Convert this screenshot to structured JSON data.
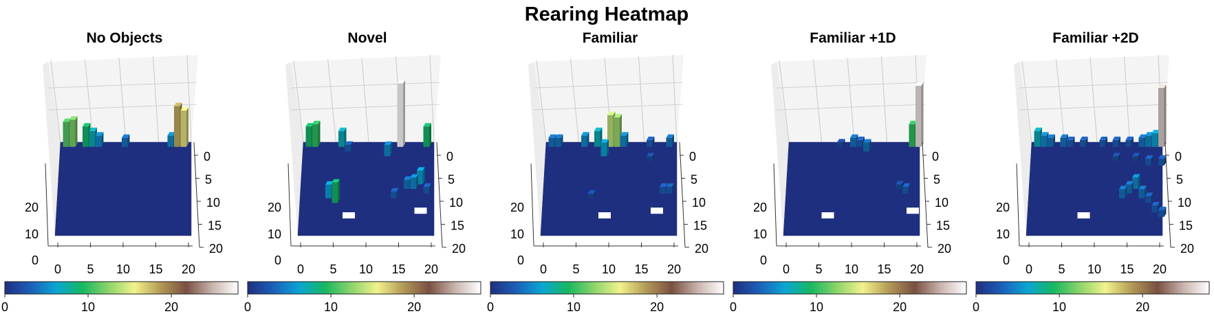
{
  "chart_data": {
    "type": "bar3d",
    "title": "Rearing Heatmap",
    "colormap": {
      "name": "gist_earth-like",
      "range": [
        0,
        28
      ],
      "ticks": [
        "0",
        "10",
        "20"
      ],
      "stops": [
        "#1f2f80",
        "#1c5fb8",
        "#0aa6d4",
        "#17b860",
        "#8bd46a",
        "#f2f28c",
        "#b39a56",
        "#7a4f42",
        "#c9b3ad",
        "#ffffff"
      ]
    },
    "axes": {
      "x_ticks": [
        "0",
        "5",
        "10",
        "15",
        "20"
      ],
      "y_ticks": [
        "0",
        "5",
        "10",
        "15",
        "20"
      ],
      "z_ticks": [
        "0",
        "10",
        "20"
      ],
      "grid": true
    },
    "empty_cell_color": "#ffffff",
    "panels": [
      {
        "name": "No Objects",
        "bars": [
          {
            "x": 1,
            "y": 1,
            "z": 11
          },
          {
            "x": 2,
            "y": 1,
            "z": 12
          },
          {
            "x": 4,
            "y": 1,
            "z": 9
          },
          {
            "x": 5,
            "y": 1,
            "z": 7
          },
          {
            "x": 6,
            "y": 1,
            "z": 5
          },
          {
            "x": 10,
            "y": 1,
            "z": 4
          },
          {
            "x": 17,
            "y": 1,
            "z": 5
          },
          {
            "x": 18,
            "y": 1,
            "z": 18
          },
          {
            "x": 19,
            "y": 1,
            "z": 16
          }
        ],
        "empty": []
      },
      {
        "name": "Novel",
        "bars": [
          {
            "x": 1,
            "y": 1,
            "z": 9
          },
          {
            "x": 2,
            "y": 1,
            "z": 10
          },
          {
            "x": 6,
            "y": 1,
            "z": 7
          },
          {
            "x": 15,
            "y": 1,
            "z": 28
          },
          {
            "x": 19,
            "y": 1,
            "z": 9
          },
          {
            "x": 7,
            "y": 2,
            "z": 3
          },
          {
            "x": 13,
            "y": 3,
            "z": 5
          },
          {
            "x": 4,
            "y": 12,
            "z": 6
          },
          {
            "x": 5,
            "y": 13,
            "z": 9
          },
          {
            "x": 16,
            "y": 10,
            "z": 4
          },
          {
            "x": 17,
            "y": 10,
            "z": 5
          },
          {
            "x": 18,
            "y": 9,
            "z": 6
          },
          {
            "x": 14,
            "y": 12,
            "z": 3
          },
          {
            "x": 19,
            "y": 11,
            "z": 3
          }
        ],
        "empty": [
          {
            "x": 6,
            "y": 15
          },
          {
            "x": 17,
            "y": 14
          }
        ]
      },
      {
        "name": "Familiar",
        "bars": [
          {
            "x": 1,
            "y": 1,
            "z": 4
          },
          {
            "x": 2,
            "y": 1,
            "z": 4
          },
          {
            "x": 6,
            "y": 1,
            "z": 5
          },
          {
            "x": 8,
            "y": 1,
            "z": 7
          },
          {
            "x": 10,
            "y": 1,
            "z": 14
          },
          {
            "x": 11,
            "y": 1,
            "z": 13
          },
          {
            "x": 12,
            "y": 1,
            "z": 5
          },
          {
            "x": 16,
            "y": 1,
            "z": 3
          },
          {
            "x": 19,
            "y": 1,
            "z": 4
          },
          {
            "x": 9,
            "y": 3,
            "z": 6
          },
          {
            "x": 7,
            "y": 12,
            "z": 2
          },
          {
            "x": 18,
            "y": 11,
            "z": 3
          },
          {
            "x": 19,
            "y": 11,
            "z": 3
          },
          {
            "x": 16,
            "y": 4,
            "z": 2
          }
        ],
        "empty": [
          {
            "x": 8,
            "y": 15
          },
          {
            "x": 16,
            "y": 14
          }
        ]
      },
      {
        "name": "Familiar +1D",
        "bars": [
          {
            "x": 8,
            "y": 1,
            "z": 2
          },
          {
            "x": 10,
            "y": 1,
            "z": 4
          },
          {
            "x": 11,
            "y": 1,
            "z": 3
          },
          {
            "x": 12,
            "y": 2,
            "z": 4
          },
          {
            "x": 19,
            "y": 1,
            "z": 10
          },
          {
            "x": 20,
            "y": 1,
            "z": 27
          },
          {
            "x": 18,
            "y": 11,
            "z": 3
          },
          {
            "x": 17,
            "y": 10,
            "z": 2
          }
        ],
        "empty": [
          {
            "x": 5,
            "y": 15
          },
          {
            "x": 18,
            "y": 14
          }
        ]
      },
      {
        "name": "Familiar +2D",
        "bars": [
          {
            "x": 1,
            "y": 1,
            "z": 7
          },
          {
            "x": 2,
            "y": 1,
            "z": 5
          },
          {
            "x": 3,
            "y": 1,
            "z": 4
          },
          {
            "x": 5,
            "y": 1,
            "z": 4
          },
          {
            "x": 6,
            "y": 1,
            "z": 3
          },
          {
            "x": 8,
            "y": 1,
            "z": 3
          },
          {
            "x": 11,
            "y": 1,
            "z": 3
          },
          {
            "x": 13,
            "y": 1,
            "z": 3
          },
          {
            "x": 15,
            "y": 1,
            "z": 3
          },
          {
            "x": 17,
            "y": 1,
            "z": 4
          },
          {
            "x": 18,
            "y": 1,
            "z": 5
          },
          {
            "x": 19,
            "y": 1,
            "z": 6
          },
          {
            "x": 20,
            "y": 1,
            "z": 26
          },
          {
            "x": 13,
            "y": 4,
            "z": 2
          },
          {
            "x": 16,
            "y": 4,
            "z": 2
          },
          {
            "x": 18,
            "y": 5,
            "z": 3
          },
          {
            "x": 20,
            "y": 5,
            "z": 3
          },
          {
            "x": 15,
            "y": 11,
            "z": 4
          },
          {
            "x": 16,
            "y": 10,
            "z": 5
          },
          {
            "x": 17,
            "y": 12,
            "z": 4
          },
          {
            "x": 18,
            "y": 13,
            "z": 3
          },
          {
            "x": 19,
            "y": 15,
            "z": 3
          },
          {
            "x": 20,
            "y": 16,
            "z": 3
          },
          {
            "x": 14,
            "y": 12,
            "z": 4
          }
        ],
        "empty": [
          {
            "x": 7,
            "y": 15
          }
        ]
      }
    ]
  }
}
